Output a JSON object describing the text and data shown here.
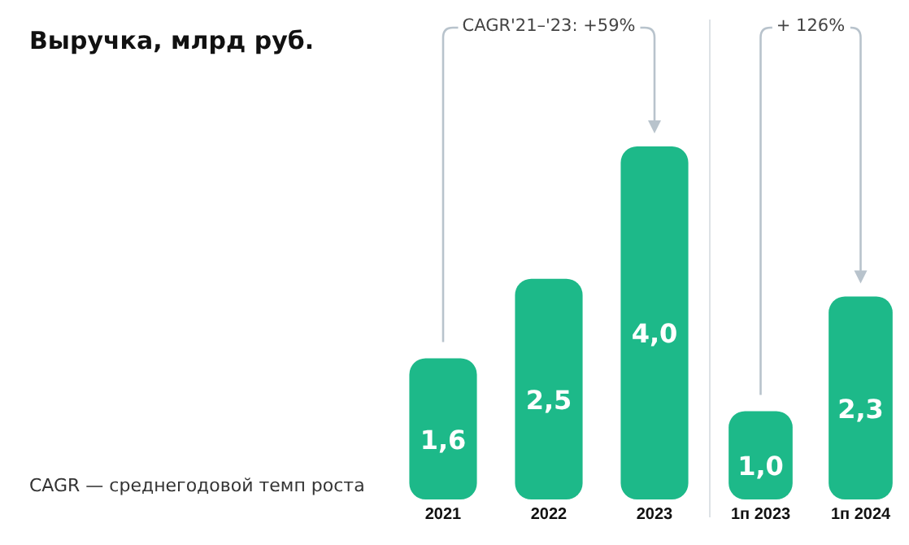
{
  "chart_data": [
    {
      "type": "bar",
      "title": "Выручка, млрд руб.",
      "categories": [
        "2021",
        "2022",
        "2023"
      ],
      "values": [
        1.6,
        2.5,
        4.0
      ],
      "value_labels": [
        "1,6",
        "2,5",
        "4,0"
      ],
      "color": "#1db989",
      "annotations": [
        "CAGR'21–'23: +59%",
        "CAGR — среднегодовой темп роста"
      ],
      "legend": false
    },
    {
      "type": "bar",
      "categories": [
        "1п 2023",
        "1п 2024"
      ],
      "values": [
        1.0,
        2.3
      ],
      "value_labels": [
        "1,0",
        "2,3"
      ],
      "color": "#1db989",
      "annotations": [
        "+ 126%"
      ],
      "legend": false
    }
  ]
}
